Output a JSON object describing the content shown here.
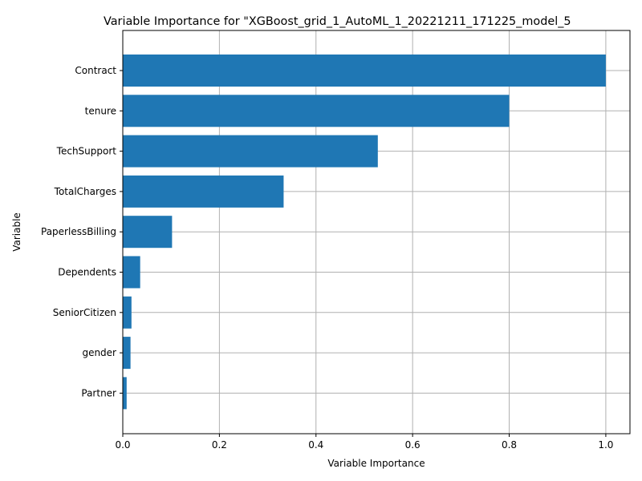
{
  "chart_data": {
    "type": "bar",
    "orientation": "horizontal",
    "title": "Variable Importance for \"XGBoost_grid_1_AutoML_1_20221211_171225_model_5",
    "xlabel": "Variable Importance",
    "ylabel": "Variable",
    "xlim": [
      0,
      1.05
    ],
    "xticks": [
      0.0,
      0.2,
      0.4,
      0.6,
      0.8,
      1.0
    ],
    "xtick_labels": [
      "0.0",
      "0.2",
      "0.4",
      "0.6",
      "0.8",
      "1.0"
    ],
    "grid": true,
    "bar_color": "#1f77b4",
    "categories": [
      "Contract",
      "tenure",
      "TechSupport",
      "TotalCharges",
      "PaperlessBilling",
      "Dependents",
      "SeniorCitizen",
      "gender",
      "Partner"
    ],
    "values": [
      1.0,
      0.8,
      0.528,
      0.333,
      0.102,
      0.036,
      0.018,
      0.016,
      0.008
    ]
  }
}
